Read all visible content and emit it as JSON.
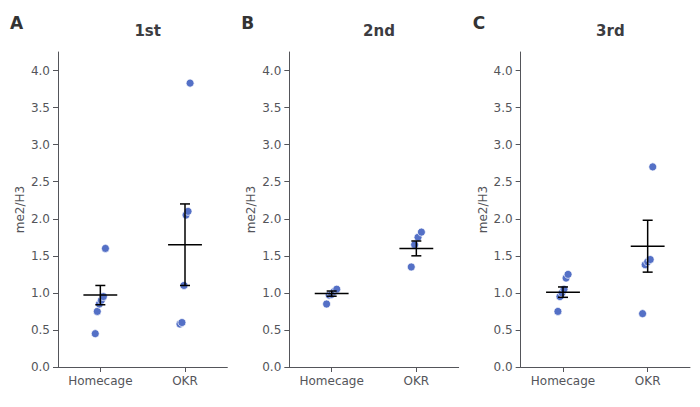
{
  "chart_data": [
    {
      "type": "scatter",
      "title": "1st",
      "annotations": [
        "A"
      ],
      "ylabel": "me2/H3",
      "categories": [
        "Homecage",
        "OKR"
      ],
      "ylim": [
        0.0,
        4.25
      ],
      "yticks": [
        {
          "value": 0.0,
          "label": "0.0"
        },
        0.5,
        {
          "value": 1.0,
          "label": "1.0"
        },
        1.5,
        {
          "value": 2.0,
          "label": "2.0"
        },
        2.5,
        {
          "value": 3.0,
          "label": "3.0"
        },
        3.5,
        {
          "value": 4.0,
          "label": "4.0"
        }
      ],
      "grid": false,
      "series": [
        {
          "type": "scatter",
          "values": [
            [
              0.45,
              0.75,
              0.85,
              0.9,
              0.95,
              1.6
            ],
            [
              0.58,
              0.6,
              1.1,
              2.05,
              2.1,
              3.83
            ]
          ]
        },
        {
          "type": "errorbar",
          "values": [
            0.97,
            1.65
          ],
          "errors": [
            0.13,
            0.55
          ],
          "color": "#000000"
        }
      ]
    },
    {
      "type": "scatter",
      "title": "2nd",
      "annotations": [
        "B"
      ],
      "ylabel": "me2/H3",
      "categories": [
        "Homecage",
        "OKR"
      ],
      "ylim": [
        0.0,
        4.25
      ],
      "yticks": [
        {
          "value": 0.0,
          "label": "0.0"
        },
        0.5,
        {
          "value": 1.0,
          "label": "1.0"
        },
        1.5,
        {
          "value": 2.0,
          "label": "2.0"
        },
        2.5,
        {
          "value": 3.0,
          "label": "3.0"
        },
        3.5,
        {
          "value": 4.0,
          "label": "4.0"
        }
      ],
      "grid": false,
      "series": [
        {
          "type": "scatter",
          "values": [
            [
              0.85,
              0.97,
              0.98,
              1.02,
              1.05
            ],
            [
              1.35,
              1.65,
              1.75,
              1.82
            ]
          ]
        },
        {
          "type": "errorbar",
          "values": [
            0.99,
            1.6
          ],
          "errors": [
            0.035,
            0.1
          ],
          "color": "#000000"
        }
      ]
    },
    {
      "type": "scatter",
      "title": "3rd",
      "annotations": [
        "C"
      ],
      "ylabel": "me2/H3",
      "categories": [
        "Homecage",
        "OKR"
      ],
      "ylim": [
        0.0,
        4.25
      ],
      "yticks": [
        {
          "value": 0.0,
          "label": "0.0"
        },
        0.5,
        {
          "value": 1.0,
          "label": "1.0"
        },
        1.5,
        {
          "value": 2.0,
          "label": "2.0"
        },
        2.5,
        {
          "value": 3.0,
          "label": "3.0"
        },
        3.5,
        {
          "value": 4.0,
          "label": "4.0"
        }
      ],
      "grid": false,
      "series": [
        {
          "type": "scatter",
          "values": [
            [
              0.75,
              0.95,
              1.0,
              1.05,
              1.2,
              1.25
            ],
            [
              0.72,
              1.38,
              1.42,
              1.45,
              2.7
            ]
          ]
        },
        {
          "type": "errorbar",
          "values": [
            1.01,
            1.63
          ],
          "errors": [
            0.07,
            0.35
          ],
          "color": "#000000"
        }
      ]
    }
  ]
}
